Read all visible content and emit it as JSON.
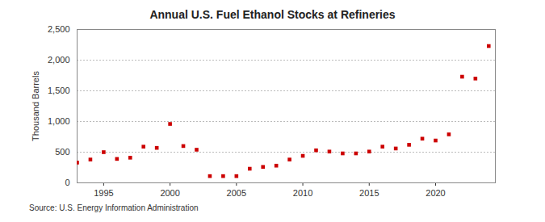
{
  "chart_data": {
    "type": "scatter",
    "title": "Annual U.S. Fuel Ethanol Stocks at Refineries",
    "y_label": "Thousand Barrels",
    "source": "Source: U.S. Energy Information Administration",
    "x": [
      1993,
      1994,
      1995,
      1996,
      1997,
      1998,
      1999,
      2000,
      2001,
      2002,
      2003,
      2004,
      2005,
      2006,
      2007,
      2008,
      2009,
      2010,
      2011,
      2012,
      2013,
      2014,
      2015,
      2016,
      2017,
      2018,
      2019,
      2020,
      2021,
      2022,
      2023,
      2024
    ],
    "values": [
      330,
      380,
      500,
      390,
      410,
      590,
      570,
      960,
      600,
      540,
      110,
      110,
      110,
      230,
      260,
      280,
      380,
      440,
      530,
      510,
      480,
      480,
      510,
      590,
      560,
      620,
      720,
      690,
      790,
      1730,
      1700,
      2230
    ],
    "color": "#cc0000",
    "marker": "square",
    "xlim": [
      1993,
      2024.5
    ],
    "xticks": [
      1995,
      2000,
      2005,
      2010,
      2015,
      2020
    ],
    "ylim": [
      0,
      2500
    ],
    "yticks": [
      0,
      500,
      {
        "value": 1000,
        "label": "1,000"
      },
      {
        "value": 1500,
        "label": "1,500"
      },
      {
        "value": 2000,
        "label": "2,000"
      },
      {
        "value": 2500,
        "label": "2,500"
      }
    ],
    "grid": true
  }
}
